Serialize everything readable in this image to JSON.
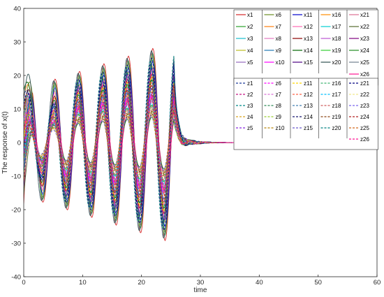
{
  "chart_data": {
    "type": "line",
    "xlabel": "time",
    "ylabel": "The response of x(t)",
    "xlim": [
      0,
      60
    ],
    "ylim": [
      -40,
      40
    ],
    "xticks": [
      0,
      10,
      20,
      30,
      40,
      50,
      60
    ],
    "yticks": [
      -40,
      -30,
      -20,
      -10,
      0,
      10,
      20,
      30,
      40
    ],
    "grid": false,
    "legend_placement": "top-right",
    "x_sampled": [
      0,
      0.5,
      1,
      1.5,
      2,
      2.5,
      3,
      3.5,
      4,
      4.5,
      5,
      5.5,
      6,
      6.5,
      7,
      7.5,
      8,
      8.5,
      9,
      9.5,
      10,
      10.5,
      11,
      11.5,
      12,
      12.5,
      13,
      13.5,
      14,
      14.5,
      15,
      15.5,
      16,
      16.5,
      17,
      17.5,
      18,
      18.5,
      19,
      19.5,
      20,
      20.5,
      21,
      21.5,
      22,
      22.5,
      23,
      23.5,
      24,
      24.5,
      25,
      25.5,
      26,
      26.5,
      27,
      27.5,
      28,
      28.5,
      29,
      29.5,
      30,
      30.5,
      31,
      31.5,
      32,
      32.5,
      33,
      34,
      35,
      36,
      38,
      40,
      45,
      50,
      55,
      60
    ],
    "envelope_note": "",
    "series_x": [
      {
        "name": "x1",
        "color": "#d62728",
        "style": "solid",
        "amp": 1.0
      },
      {
        "name": "x2",
        "color": "#2ca02c",
        "style": "solid",
        "amp": 0.95
      },
      {
        "name": "x3",
        "color": "#17becf",
        "style": "solid",
        "amp": 0.88
      },
      {
        "name": "x4",
        "color": "#bcbd22",
        "style": "solid",
        "amp": 0.82
      },
      {
        "name": "x5",
        "color": "#9467bd",
        "style": "solid",
        "amp": 0.76
      },
      {
        "name": "x6",
        "color": "#6b8e23",
        "style": "solid",
        "amp": 0.92
      },
      {
        "name": "x7",
        "color": "#ff7f0e",
        "style": "solid",
        "amp": 0.7
      },
      {
        "name": "x8",
        "color": "#e377c2",
        "style": "solid",
        "amp": 0.64
      },
      {
        "name": "x9",
        "color": "#1f77b4",
        "style": "solid",
        "amp": 0.58
      },
      {
        "name": "x10",
        "color": "#ff00ff",
        "style": "solid",
        "amp": 0.52
      },
      {
        "name": "x11",
        "color": "#0000cd",
        "style": "solid",
        "amp": 0.86
      },
      {
        "name": "x12",
        "color": "#ff69b4",
        "style": "solid",
        "amp": 0.79
      },
      {
        "name": "x13",
        "color": "#8b0000",
        "style": "solid",
        "amp": 0.73
      },
      {
        "name": "x14",
        "color": "#006400",
        "style": "solid",
        "amp": 0.67
      },
      {
        "name": "x15",
        "color": "#4b0082",
        "style": "solid",
        "amp": 0.61
      },
      {
        "name": "x16",
        "color": "#ff8c00",
        "style": "solid",
        "amp": 0.55
      },
      {
        "name": "x17",
        "color": "#00ced1",
        "style": "solid",
        "amp": 0.49
      },
      {
        "name": "x18",
        "color": "#ba55d3",
        "style": "solid",
        "amp": 0.44
      },
      {
        "name": "x19",
        "color": "#32cd32",
        "style": "solid",
        "amp": 0.4
      },
      {
        "name": "x20",
        "color": "#2f4f4f",
        "style": "solid",
        "amp": 0.98
      },
      {
        "name": "x21",
        "color": "#db7093",
        "style": "solid",
        "amp": 0.36
      },
      {
        "name": "x22",
        "color": "#556b2f",
        "style": "solid",
        "amp": 0.33
      },
      {
        "name": "x23",
        "color": "#800080",
        "style": "solid",
        "amp": 0.3
      },
      {
        "name": "x24",
        "color": "#228b22",
        "style": "solid",
        "amp": 0.27
      },
      {
        "name": "x25",
        "color": "#708090",
        "style": "solid",
        "amp": 0.96
      },
      {
        "name": "x26",
        "color": "#ff1493",
        "style": "solid",
        "amp": 0.5
      }
    ],
    "series_z": [
      {
        "name": "z1",
        "color": "#1f3b9b",
        "style": "dashed",
        "amp": 0.8
      },
      {
        "name": "z2",
        "color": "#c71585",
        "style": "dashed",
        "amp": 0.74
      },
      {
        "name": "z3",
        "color": "#008b8b",
        "style": "dashed",
        "amp": 0.68
      },
      {
        "name": "z4",
        "color": "#daa520",
        "style": "dashed",
        "amp": 0.62
      },
      {
        "name": "z5",
        "color": "#8a2be2",
        "style": "dashed",
        "amp": 0.56
      },
      {
        "name": "z6",
        "color": "#ff00ff",
        "style": "dashed",
        "amp": 0.5
      },
      {
        "name": "z7",
        "color": "#da70d6",
        "style": "dashed",
        "amp": 0.45
      },
      {
        "name": "z8",
        "color": "#2e8b57",
        "style": "dashed",
        "amp": 0.4
      },
      {
        "name": "z9",
        "color": "#9acd32",
        "style": "dashed",
        "amp": 0.36
      },
      {
        "name": "z10",
        "color": "#b8860b",
        "style": "dashed",
        "amp": 0.32
      },
      {
        "name": "z11",
        "color": "#ffd700",
        "style": "dashed",
        "amp": 0.7
      },
      {
        "name": "z12",
        "color": "#ff6347",
        "style": "dashed",
        "amp": 0.64
      },
      {
        "name": "z13",
        "color": "#4682b4",
        "style": "dashed",
        "amp": 0.58
      },
      {
        "name": "z14",
        "color": "#191970",
        "style": "dashed",
        "amp": 0.84
      },
      {
        "name": "z15",
        "color": "#6a5acd",
        "style": "dashed",
        "amp": 0.52
      },
      {
        "name": "z16",
        "color": "#3cb371",
        "style": "dashed",
        "amp": 0.46
      },
      {
        "name": "z17",
        "color": "#00bfff",
        "style": "dashed",
        "amp": 0.42
      },
      {
        "name": "z18",
        "color": "#cd5c5c",
        "style": "dashed",
        "amp": 0.38
      },
      {
        "name": "z19",
        "color": "#8b4513",
        "style": "dashed",
        "amp": 0.34
      },
      {
        "name": "z20",
        "color": "#008080",
        "style": "dashed",
        "amp": 0.88
      },
      {
        "name": "z21",
        "color": "#000080",
        "style": "dashed",
        "amp": 0.9
      },
      {
        "name": "z22",
        "color": "#f0e68c",
        "style": "dashed",
        "amp": 0.3
      },
      {
        "name": "z23",
        "color": "#7b68ee",
        "style": "dashed",
        "amp": 0.28
      },
      {
        "name": "z24",
        "color": "#b22222",
        "style": "dashed",
        "amp": 0.6
      },
      {
        "name": "z25",
        "color": "#d2691e",
        "style": "dashed",
        "amp": 0.55
      },
      {
        "name": "z26",
        "color": "#ff1493",
        "style": "dashed",
        "amp": 0.48
      }
    ]
  }
}
